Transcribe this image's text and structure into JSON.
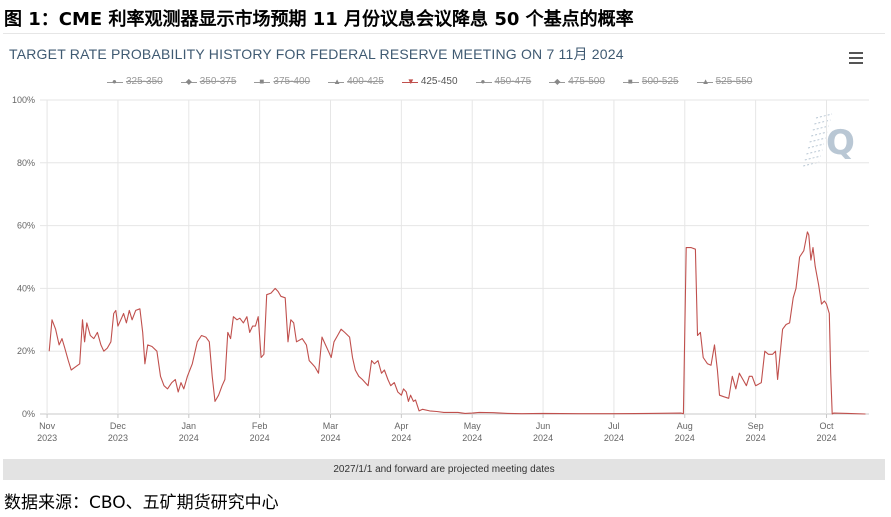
{
  "figure_title": "图 1：CME 利率观测器显示市场预期 11 月份议息会议降息 50 个基点的概率",
  "source_note": "数据来源：CBO、五矿期货研究中心",
  "chart_data": {
    "type": "line",
    "title": "TARGET RATE PROBABILITY HISTORY FOR FEDERAL RESERVE MEETING ON 7 11月 2024",
    "footer_note": "2027/1/1 and forward are projected meeting dates",
    "watermark": "Q",
    "menu_icon": "hamburger-menu-icon",
    "y_ticks": [
      "0%",
      "20%",
      "40%",
      "60%",
      "80%",
      "100%"
    ],
    "ylim": [
      0,
      100
    ],
    "grid": true,
    "x_ticks": [
      {
        "month": "Nov",
        "year": "2023",
        "t": 0
      },
      {
        "month": "Dec",
        "year": "2023",
        "t": 1
      },
      {
        "month": "Jan",
        "year": "2024",
        "t": 2
      },
      {
        "month": "Feb",
        "year": "2024",
        "t": 3
      },
      {
        "month": "Mar",
        "year": "2024",
        "t": 4
      },
      {
        "month": "Apr",
        "year": "2024",
        "t": 5
      },
      {
        "month": "May",
        "year": "2024",
        "t": 6
      },
      {
        "month": "Jun",
        "year": "2024",
        "t": 7
      },
      {
        "month": "Jul",
        "year": "2024",
        "t": 8
      },
      {
        "month": "Aug",
        "year": "2024",
        "t": 9
      },
      {
        "month": "Sep",
        "year": "2024",
        "t": 10
      },
      {
        "month": "Oct",
        "year": "2024",
        "t": 11
      }
    ],
    "xlim": [
      -0.1,
      11.6
    ],
    "legend": [
      {
        "name": "325-350",
        "marker": "●",
        "hidden": true
      },
      {
        "name": "350-375",
        "marker": "◆",
        "hidden": true
      },
      {
        "name": "375-400",
        "marker": "■",
        "hidden": true
      },
      {
        "name": "400-425",
        "marker": "▲",
        "hidden": true
      },
      {
        "name": "425-450",
        "marker": "▼",
        "hidden": false
      },
      {
        "name": "450-475",
        "marker": "●",
        "hidden": true
      },
      {
        "name": "475-500",
        "marker": "◆",
        "hidden": true
      },
      {
        "name": "500-525",
        "marker": "■",
        "hidden": true
      },
      {
        "name": "525-550",
        "marker": "▲",
        "hidden": true
      }
    ],
    "series": [
      {
        "name": "425-450",
        "color": "#c0504d",
        "points": [
          [
            0.03,
            20
          ],
          [
            0.07,
            30
          ],
          [
            0.12,
            27
          ],
          [
            0.17,
            22
          ],
          [
            0.21,
            24
          ],
          [
            0.25,
            21
          ],
          [
            0.3,
            17
          ],
          [
            0.34,
            14
          ],
          [
            0.4,
            15
          ],
          [
            0.46,
            16
          ],
          [
            0.5,
            30
          ],
          [
            0.53,
            23
          ],
          [
            0.56,
            29
          ],
          [
            0.61,
            25
          ],
          [
            0.66,
            24
          ],
          [
            0.71,
            26
          ],
          [
            0.76,
            22
          ],
          [
            0.8,
            20
          ],
          [
            0.85,
            21
          ],
          [
            0.9,
            23
          ],
          [
            0.94,
            32
          ],
          [
            0.97,
            33
          ],
          [
            1.0,
            28
          ],
          [
            1.04,
            30
          ],
          [
            1.08,
            32
          ],
          [
            1.12,
            29
          ],
          [
            1.16,
            33
          ],
          [
            1.2,
            30
          ],
          [
            1.25,
            33
          ],
          [
            1.31,
            33.5
          ],
          [
            1.35,
            26
          ],
          [
            1.38,
            16
          ],
          [
            1.42,
            22
          ],
          [
            1.48,
            21.5
          ],
          [
            1.55,
            20
          ],
          [
            1.6,
            12
          ],
          [
            1.65,
            9
          ],
          [
            1.7,
            8
          ],
          [
            1.76,
            10
          ],
          [
            1.81,
            11
          ],
          [
            1.85,
            7
          ],
          [
            1.89,
            10
          ],
          [
            1.93,
            8
          ],
          [
            1.98,
            12
          ],
          [
            2.05,
            16
          ],
          [
            2.12,
            23
          ],
          [
            2.18,
            25
          ],
          [
            2.24,
            24.5
          ],
          [
            2.29,
            23
          ],
          [
            2.33,
            12
          ],
          [
            2.37,
            4
          ],
          [
            2.42,
            6
          ],
          [
            2.47,
            9
          ],
          [
            2.51,
            11
          ],
          [
            2.55,
            26
          ],
          [
            2.59,
            24
          ],
          [
            2.63,
            31
          ],
          [
            2.68,
            30
          ],
          [
            2.72,
            30.5
          ],
          [
            2.77,
            29
          ],
          [
            2.82,
            31
          ],
          [
            2.86,
            26
          ],
          [
            2.9,
            28
          ],
          [
            2.94,
            28
          ],
          [
            2.98,
            31
          ],
          [
            3.02,
            18
          ],
          [
            3.06,
            19
          ],
          [
            3.1,
            38
          ],
          [
            3.16,
            38.5
          ],
          [
            3.22,
            40
          ],
          [
            3.26,
            39
          ],
          [
            3.3,
            37.5
          ],
          [
            3.36,
            37
          ],
          [
            3.4,
            23
          ],
          [
            3.44,
            30
          ],
          [
            3.48,
            29
          ],
          [
            3.52,
            23
          ],
          [
            3.6,
            24
          ],
          [
            3.66,
            22
          ],
          [
            3.7,
            17
          ],
          [
            3.74,
            16
          ],
          [
            3.78,
            15
          ],
          [
            3.83,
            13
          ],
          [
            3.88,
            24.5
          ],
          [
            3.93,
            22
          ],
          [
            3.97,
            20
          ],
          [
            4.01,
            18
          ],
          [
            4.05,
            23
          ],
          [
            4.1,
            25
          ],
          [
            4.15,
            27
          ],
          [
            4.2,
            26
          ],
          [
            4.27,
            24.5
          ],
          [
            4.31,
            18
          ],
          [
            4.35,
            14
          ],
          [
            4.4,
            12
          ],
          [
            4.45,
            11
          ],
          [
            4.49,
            10
          ],
          [
            4.53,
            9
          ],
          [
            4.58,
            17
          ],
          [
            4.62,
            16
          ],
          [
            4.67,
            17
          ],
          [
            4.72,
            13
          ],
          [
            4.76,
            14
          ],
          [
            4.81,
            11
          ],
          [
            4.85,
            9
          ],
          [
            4.9,
            10
          ],
          [
            4.95,
            7
          ],
          [
            5.0,
            6
          ],
          [
            5.03,
            8
          ],
          [
            5.07,
            7
          ],
          [
            5.1,
            4
          ],
          [
            5.13,
            6
          ],
          [
            5.17,
            4
          ],
          [
            5.2,
            4.5
          ],
          [
            5.25,
            1
          ],
          [
            5.3,
            1.5
          ],
          [
            5.4,
            1
          ],
          [
            5.5,
            0.8
          ],
          [
            5.6,
            0.5
          ],
          [
            5.8,
            0.5
          ],
          [
            5.9,
            0.2
          ],
          [
            6.0,
            0.3
          ],
          [
            6.1,
            0.5
          ],
          [
            6.3,
            0.4
          ],
          [
            6.5,
            0.2
          ],
          [
            6.7,
            0.1
          ],
          [
            7.0,
            0.2
          ],
          [
            7.5,
            0.1
          ],
          [
            8.0,
            0.1
          ],
          [
            8.5,
            0.2
          ],
          [
            8.95,
            0.3
          ],
          [
            8.98,
            0.1
          ],
          [
            9.02,
            53
          ],
          [
            9.09,
            53
          ],
          [
            9.15,
            52.5
          ],
          [
            9.18,
            25
          ],
          [
            9.22,
            26
          ],
          [
            9.26,
            18
          ],
          [
            9.32,
            16
          ],
          [
            9.37,
            15.5
          ],
          [
            9.42,
            22
          ],
          [
            9.46,
            14
          ],
          [
            9.49,
            6
          ],
          [
            9.55,
            5.5
          ],
          [
            9.62,
            5
          ],
          [
            9.67,
            12
          ],
          [
            9.72,
            8
          ],
          [
            9.77,
            13
          ],
          [
            9.82,
            11
          ],
          [
            9.87,
            9
          ],
          [
            9.91,
            12
          ],
          [
            9.95,
            12
          ],
          [
            10.0,
            9
          ],
          [
            10.04,
            9.5
          ],
          [
            10.08,
            10
          ],
          [
            10.13,
            20
          ],
          [
            10.18,
            19
          ],
          [
            10.24,
            19
          ],
          [
            10.28,
            20
          ],
          [
            10.31,
            11
          ],
          [
            10.35,
            20
          ],
          [
            10.38,
            27
          ],
          [
            10.43,
            28.5
          ],
          [
            10.48,
            29
          ],
          [
            10.53,
            37
          ],
          [
            10.57,
            40
          ],
          [
            10.62,
            50
          ],
          [
            10.68,
            52
          ],
          [
            10.73,
            58
          ],
          [
            10.75,
            57
          ],
          [
            10.78,
            49
          ],
          [
            10.81,
            53
          ],
          [
            10.84,
            47
          ],
          [
            10.89,
            41
          ],
          [
            10.93,
            35
          ],
          [
            10.97,
            36
          ],
          [
            11.0,
            35
          ],
          [
            11.04,
            32
          ],
          [
            11.06,
            13
          ],
          [
            11.08,
            0
          ],
          [
            11.1,
            0.3
          ],
          [
            11.3,
            0.2
          ],
          [
            11.55,
            0
          ]
        ]
      }
    ]
  }
}
